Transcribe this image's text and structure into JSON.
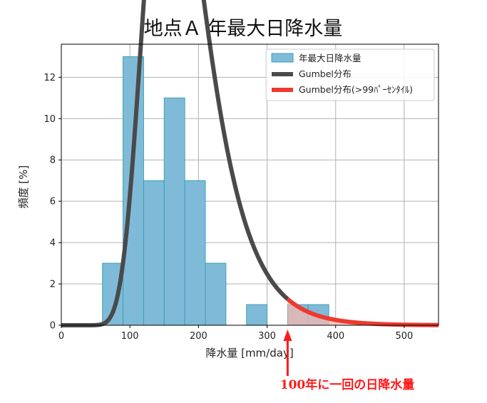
{
  "chart_data": {
    "type": "bar",
    "title": "地点Ａ  年最大日降水量",
    "xlabel": "降水量 [mm/day]",
    "ylabel": "頻度 [%]",
    "xlim": [
      0,
      550
    ],
    "ylim": [
      0,
      13.6
    ],
    "xticks": [
      0,
      100,
      200,
      300,
      400,
      500
    ],
    "yticks": [
      0,
      2,
      4,
      6,
      8,
      10,
      12
    ],
    "grid": true,
    "legend_placement": "top-right",
    "histogram": {
      "name": "年最大日降水量",
      "color": "#7fbbd8",
      "edge_color": "#3aa0b4",
      "bin_width": 30,
      "bins": [
        {
          "x0": 60,
          "value": 3
        },
        {
          "x0": 90,
          "value": 13
        },
        {
          "x0": 120,
          "value": 7
        },
        {
          "x0": 150,
          "value": 11
        },
        {
          "x0": 180,
          "value": 7
        },
        {
          "x0": 210,
          "value": 3
        },
        {
          "x0": 240,
          "value": 0
        },
        {
          "x0": 270,
          "value": 1
        },
        {
          "x0": 300,
          "value": 0
        },
        {
          "x0": 330,
          "value": 1
        },
        {
          "x0": 360,
          "value": 1
        }
      ]
    },
    "gumbel": {
      "name": "Gumbel分布",
      "location_mu": 157,
      "scale_beta": 43.5,
      "percent_per_bin": 30,
      "color": "#4a4a4a",
      "threshold_x": 330
    },
    "gumbel_tail": {
      "name": "Gumbel分布(>99ﾊﾟｰｾﾝﾀｲﾙ)",
      "color": "#ee3a2e",
      "fill_color": "#f7b7b0"
    },
    "annotation": {
      "text": "100年に一回の日降水量",
      "x": 330,
      "color": "#ff1a1a"
    }
  }
}
